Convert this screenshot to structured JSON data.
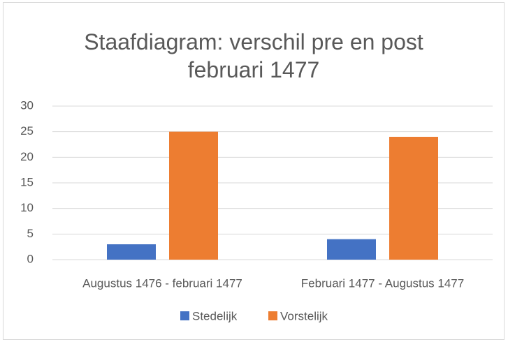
{
  "chart_data": {
    "type": "bar",
    "title": "Staafdiagram: verschil pre en post februari 1477",
    "categories": [
      "Augustus 1476 - februari 1477",
      "Februari 1477 - Augustus 1477"
    ],
    "series": [
      {
        "name": "Stedelijk",
        "color": "#4472c4",
        "values": [
          3,
          4
        ]
      },
      {
        "name": "Vorstelijk",
        "color": "#ed7d31",
        "values": [
          25,
          24
        ]
      }
    ],
    "ylim": [
      0,
      30
    ],
    "yticks": [
      0,
      5,
      10,
      15,
      20,
      25,
      30
    ],
    "grid": true,
    "legend": "bottom"
  }
}
